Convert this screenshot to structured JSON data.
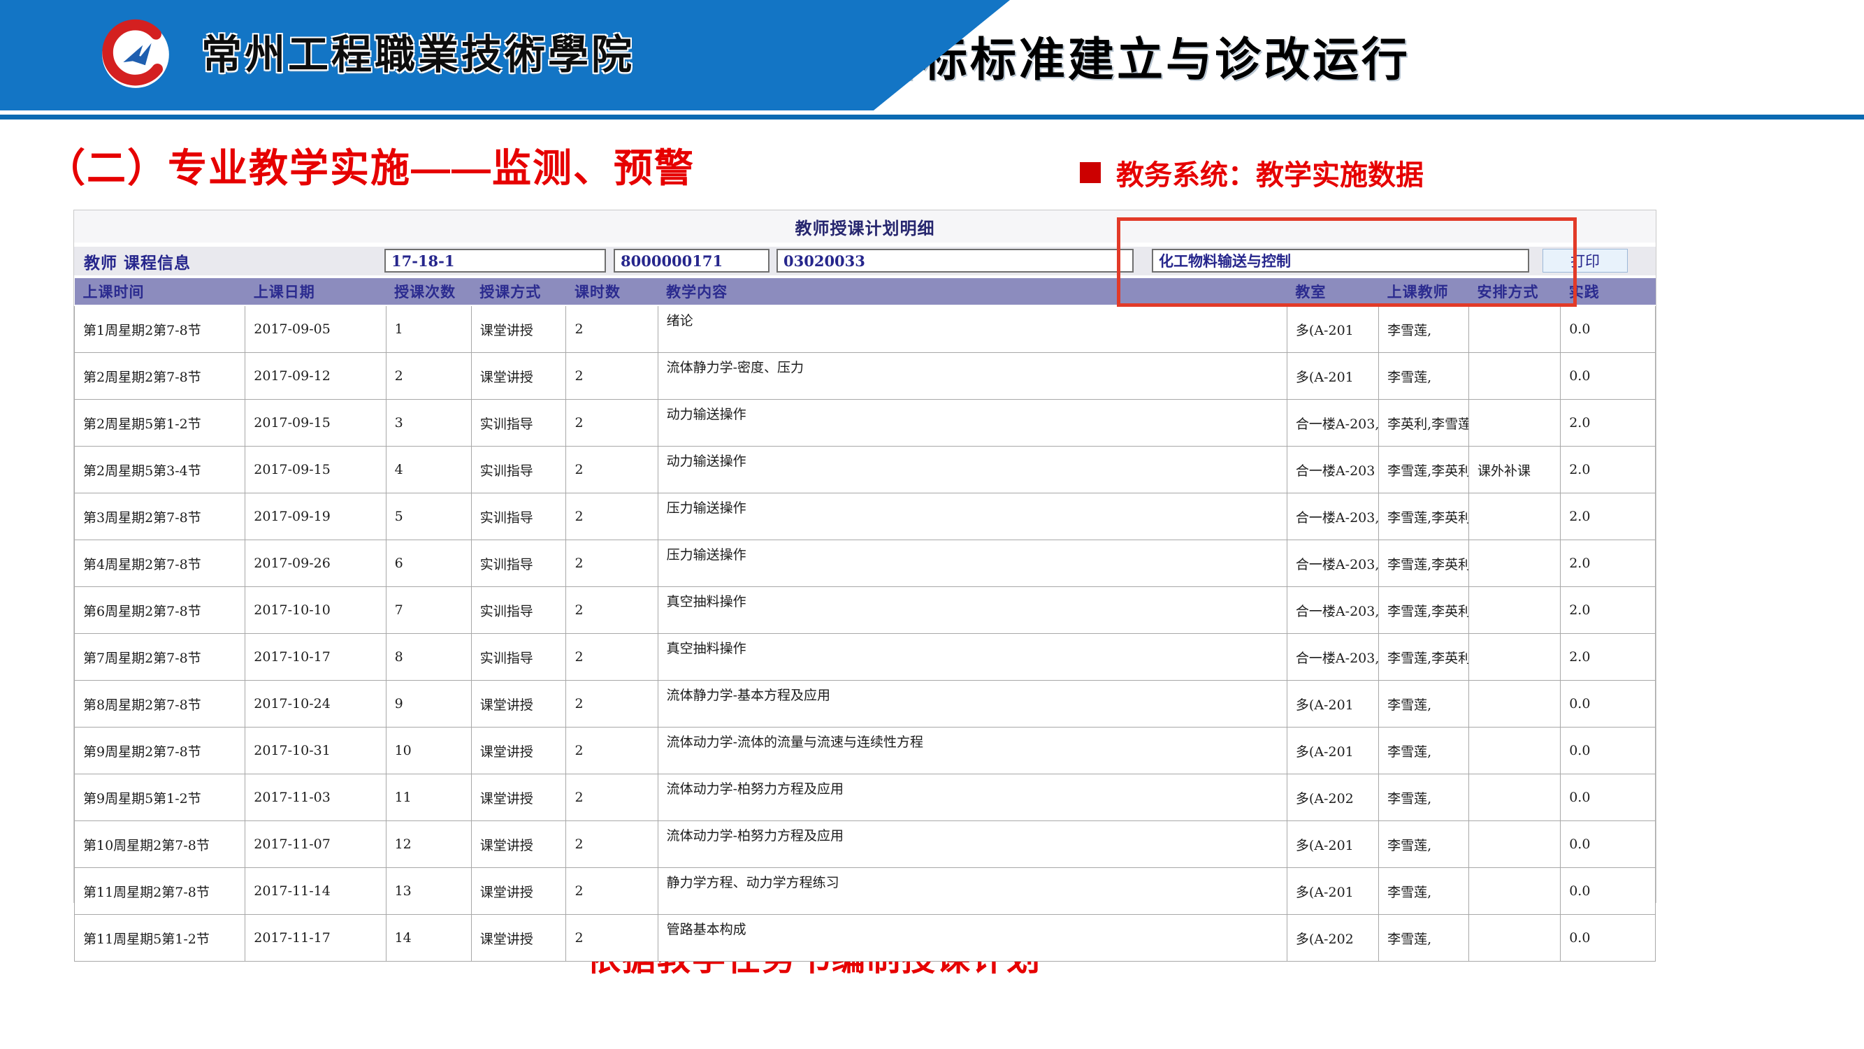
{
  "slide": {
    "school_name": "常州工程職業技術學院",
    "header_title": "二、人才培养目标标准建立与诊改运行",
    "section_heading": "（二）专业教学实施——监测、预警",
    "side_note": "教务系统：教学实施数据",
    "footer_note": "依据教学任务书编制授课计划"
  },
  "colors": {
    "banner_blue": "#1375c5",
    "rule_blue": "#0b6ab2",
    "accent_red": "#e60000",
    "annotation_red": "#e23a28",
    "table_header_bg": "#8c8cbe",
    "navy_text": "#26268c"
  },
  "report": {
    "title": "教师授课计划明细",
    "filter_label": "教师 课程信息",
    "filters": [
      "17-18-1",
      "8000000171",
      "03020033",
      "化工物料输送与控制"
    ],
    "print_button": "打印",
    "columns": [
      "上课时间",
      "上课日期",
      "授课次数",
      "授课方式",
      "课时数",
      "教学内容",
      "教室",
      "上课教师",
      "安排方式",
      "实践"
    ],
    "rows": [
      [
        "第1周星期2第7-8节",
        "2017-09-05",
        "1",
        "课堂讲授",
        "2",
        "绪论",
        "多(A-201",
        "李雪莲,",
        "",
        "0.0"
      ],
      [
        "第2周星期2第7-8节",
        "2017-09-12",
        "2",
        "课堂讲授",
        "2",
        "流体静力学-密度、压力",
        "多(A-201",
        "李雪莲,",
        "",
        "0.0"
      ],
      [
        "第2周星期5第1-2节",
        "2017-09-15",
        "3",
        "实训指导",
        "2",
        "动力输送操作",
        "合一楼A-203,",
        "李英利,李雪莲,",
        "",
        "2.0"
      ],
      [
        "第2周星期5第3-4节",
        "2017-09-15",
        "4",
        "实训指导",
        "2",
        "动力输送操作",
        "合一楼A-203",
        "李雪莲,李英利,",
        "课外补课",
        "2.0"
      ],
      [
        "第3周星期2第7-8节",
        "2017-09-19",
        "5",
        "实训指导",
        "2",
        "压力输送操作",
        "合一楼A-203,",
        "李雪莲,李英利,",
        "",
        "2.0"
      ],
      [
        "第4周星期2第7-8节",
        "2017-09-26",
        "6",
        "实训指导",
        "2",
        "压力输送操作",
        "合一楼A-203,",
        "李雪莲,李英利,",
        "",
        "2.0"
      ],
      [
        "第6周星期2第7-8节",
        "2017-10-10",
        "7",
        "实训指导",
        "2",
        "真空抽料操作",
        "合一楼A-203,",
        "李雪莲,李英利,",
        "",
        "2.0"
      ],
      [
        "第7周星期2第7-8节",
        "2017-10-17",
        "8",
        "实训指导",
        "2",
        "真空抽料操作",
        "合一楼A-203,",
        "李雪莲,李英利,",
        "",
        "2.0"
      ],
      [
        "第8周星期2第7-8节",
        "2017-10-24",
        "9",
        "课堂讲授",
        "2",
        "流体静力学-基本方程及应用",
        "多(A-201",
        "李雪莲,",
        "",
        "0.0"
      ],
      [
        "第9周星期2第7-8节",
        "2017-10-31",
        "10",
        "课堂讲授",
        "2",
        "流体动力学-流体的流量与流速与连续性方程",
        "多(A-201",
        "李雪莲,",
        "",
        "0.0"
      ],
      [
        "第9周星期5第1-2节",
        "2017-11-03",
        "11",
        "课堂讲授",
        "2",
        "流体动力学-柏努力方程及应用",
        "多(A-202",
        "李雪莲,",
        "",
        "0.0"
      ],
      [
        "第10周星期2第7-8节",
        "2017-11-07",
        "12",
        "课堂讲授",
        "2",
        "流体动力学-柏努力方程及应用",
        "多(A-201",
        "李雪莲,",
        "",
        "0.0"
      ],
      [
        "第11周星期2第7-8节",
        "2017-11-14",
        "13",
        "课堂讲授",
        "2",
        "静力学方程、动力学方程练习",
        "多(A-201",
        "李雪莲,",
        "",
        "0.0"
      ],
      [
        "第11周星期5第1-2节",
        "2017-11-17",
        "14",
        "课堂讲授",
        "2",
        "管路基本构成",
        "多(A-202",
        "李雪莲,",
        "",
        "0.0"
      ]
    ]
  }
}
